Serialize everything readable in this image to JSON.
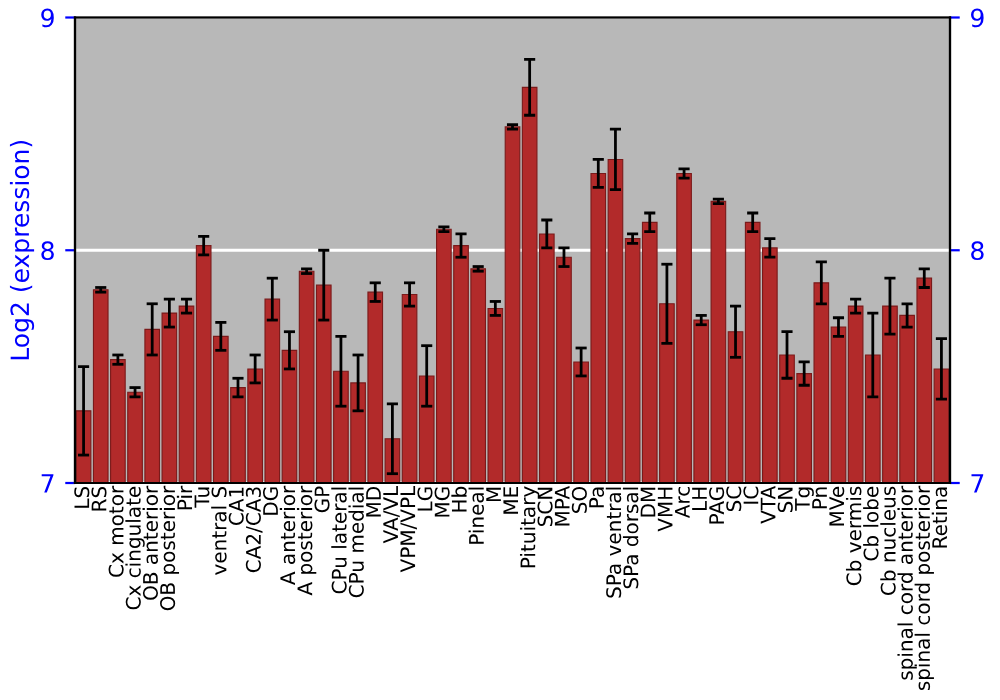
{
  "chart_data": {
    "type": "bar",
    "ylabel": "Log2 (expression)",
    "categories": [
      "LS",
      "RS",
      "Cx motor",
      "Cx cingulate",
      "OB anterior",
      "OB posterior",
      "Pir",
      "Tu",
      "ventral S",
      "CA1",
      "CA2/CA3",
      "DG",
      "A anterior",
      "A posterior",
      "GP",
      "CPu lateral",
      "CPu medial",
      "MD",
      "VA/VL",
      "VPM/VPL",
      "LG",
      "MG",
      "Hb",
      "Pineal",
      "M",
      "ME",
      "Pituitary",
      "SCN",
      "MPA",
      "SO",
      "Pa",
      "SPa ventral",
      "SPa dorsal",
      "DM",
      "VMH",
      "Arc",
      "LH",
      "PAG",
      "SC",
      "IC",
      "VTA",
      "SN",
      "Tg",
      "Pn",
      "MVe",
      "Cb vermis",
      "Cb lobe",
      "Cb nucleus",
      "spinal cord anterior",
      "spinal cord posterior",
      "Retina"
    ],
    "values": [
      7.31,
      7.83,
      7.53,
      7.39,
      7.66,
      7.73,
      7.76,
      8.02,
      7.63,
      7.41,
      7.49,
      7.79,
      7.57,
      7.91,
      7.85,
      7.48,
      7.43,
      7.82,
      7.19,
      7.81,
      7.46,
      8.09,
      8.02,
      7.92,
      7.75,
      8.53,
      8.7,
      8.07,
      7.97,
      7.52,
      8.33,
      8.39,
      8.05,
      8.12,
      7.77,
      8.33,
      7.7,
      8.21,
      7.65,
      8.12,
      8.01,
      7.55,
      7.47,
      7.86,
      7.67,
      7.76,
      7.55,
      7.76,
      7.72,
      7.88,
      7.49
    ],
    "errors": [
      0.19,
      0.01,
      0.02,
      0.02,
      0.11,
      0.06,
      0.03,
      0.04,
      0.06,
      0.04,
      0.06,
      0.09,
      0.08,
      0.01,
      0.15,
      0.15,
      0.12,
      0.04,
      0.15,
      0.05,
      0.13,
      0.01,
      0.05,
      0.01,
      0.03,
      0.01,
      0.12,
      0.06,
      0.04,
      0.06,
      0.06,
      0.13,
      0.02,
      0.04,
      0.17,
      0.02,
      0.02,
      0.01,
      0.11,
      0.04,
      0.04,
      0.1,
      0.05,
      0.09,
      0.04,
      0.03,
      0.18,
      0.12,
      0.05,
      0.04,
      0.13
    ],
    "color": "#b22a2a",
    "ylim": [
      7,
      9
    ],
    "yticks": [
      7,
      8,
      9
    ],
    "y2lim": [
      7,
      9
    ],
    "y2ticks": [
      7,
      8,
      9
    ],
    "grid": "y"
  }
}
